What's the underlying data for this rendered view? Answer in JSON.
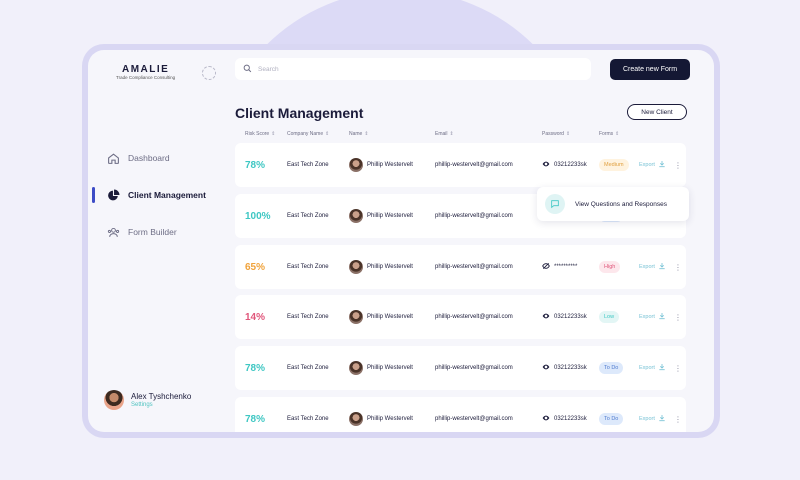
{
  "brand": {
    "title": "AMALIE",
    "subtitle": "Trade Compliance Consulting"
  },
  "search": {
    "placeholder": "Search"
  },
  "header": {
    "create_button": "Create new Form",
    "page_title": "Client Management",
    "new_client_button": "New Client"
  },
  "sidebar": {
    "items": [
      {
        "label": "Dashboard",
        "icon": "home-icon"
      },
      {
        "label": "Client Management",
        "icon": "pie-chart-icon"
      },
      {
        "label": "Form Builder",
        "icon": "users-icon"
      }
    ],
    "user": {
      "name": "Alex Tyshchenko",
      "settings_label": "Settings"
    }
  },
  "table": {
    "columns": [
      "Risk Score",
      "Company Name",
      "Name",
      "Email",
      "Password",
      "Forms"
    ],
    "rows": [
      {
        "risk": "78%",
        "risk_color": "#3ec7c3",
        "company": "East Tech Zone",
        "name": "Phillip Westervelt",
        "email": "phillip-westervelt@gmail.com",
        "password": "03212233sk",
        "form": "Medium",
        "form_bg": "#fff3df",
        "form_fg": "#e0a040",
        "export": "Export"
      },
      {
        "risk": "100%",
        "risk_color": "#3ec7c3",
        "company": "East Tech Zone",
        "name": "Phillip Westervelt",
        "email": "phillip-westervelt@gmail.com",
        "password": "",
        "form": "To Do",
        "form_bg": "#dde9fb",
        "form_fg": "#4f7bd0",
        "export": "Export"
      },
      {
        "risk": "65%",
        "risk_color": "#f0a23a",
        "company": "East Tech Zone",
        "name": "Phillip Westervelt",
        "email": "phillip-westervelt@gmail.com",
        "password": "**********",
        "form": "High",
        "form_bg": "#fde7ec",
        "form_fg": "#e0557a",
        "export": "Export"
      },
      {
        "risk": "14%",
        "risk_color": "#e0557a",
        "company": "East Tech Zone",
        "name": "Phillip Westervelt",
        "email": "phillip-westervelt@gmail.com",
        "password": "03212233sk",
        "form": "Low",
        "form_bg": "#e3f6f5",
        "form_fg": "#3ec7c3",
        "export": "Export"
      },
      {
        "risk": "78%",
        "risk_color": "#3ec7c3",
        "company": "East Tech Zone",
        "name": "Phillip Westervelt",
        "email": "phillip-westervelt@gmail.com",
        "password": "03212233sk",
        "form": "To Do",
        "form_bg": "#dde9fb",
        "form_fg": "#4f7bd0",
        "export": "Export"
      },
      {
        "risk": "78%",
        "risk_color": "#3ec7c3",
        "company": "East Tech Zone",
        "name": "Phillip Westervelt",
        "email": "phillip-westervelt@gmail.com",
        "password": "03212233sk",
        "form": "To Do",
        "form_bg": "#dde9fb",
        "form_fg": "#4f7bd0",
        "export": "Export"
      }
    ]
  },
  "popover": {
    "label": "View Questions and Responses"
  }
}
